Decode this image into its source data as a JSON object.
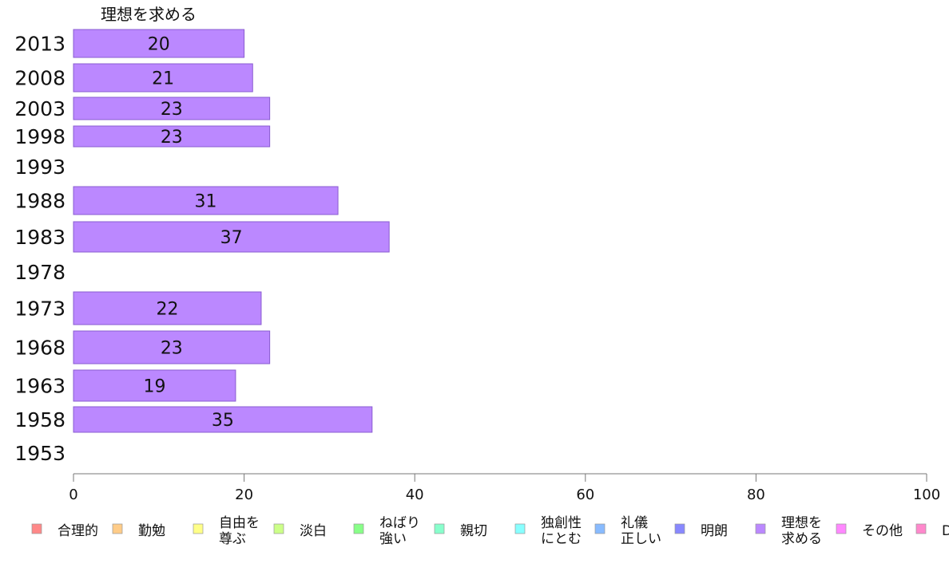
{
  "chart_data": {
    "type": "bar",
    "orientation": "horizontal",
    "title": "理想を求める",
    "categories": [
      "2013",
      "2008",
      "2003",
      "1998",
      "1993",
      "1988",
      "1983",
      "1978",
      "1973",
      "1968",
      "1963",
      "1958",
      "1953"
    ],
    "series": [
      {
        "name": "理想を求める",
        "color": "#bb88ff",
        "values": [
          20,
          21,
          23,
          23,
          null,
          31,
          37,
          null,
          22,
          23,
          19,
          35,
          null
        ]
      }
    ],
    "xlim": [
      0,
      100
    ],
    "xticks": [
      "0",
      "20",
      "40",
      "60",
      "80",
      "100"
    ],
    "grid": false,
    "legend": {
      "placement": "bottom",
      "items": [
        {
          "label": [
            "合理的"
          ],
          "color": "#ff8888"
        },
        {
          "label": [
            "勤勉"
          ],
          "color": "#ffcc88"
        },
        {
          "label": [
            "自由を",
            "尊ぶ"
          ],
          "color": "#ffff88"
        },
        {
          "label": [
            "淡白"
          ],
          "color": "#ccff88"
        },
        {
          "label": [
            "ねばり",
            "強い"
          ],
          "color": "#88ff88"
        },
        {
          "label": [
            "親切"
          ],
          "color": "#88ffcc"
        },
        {
          "label": [
            "独創性",
            "にとむ"
          ],
          "color": "#88ffff"
        },
        {
          "label": [
            "礼儀",
            "正しい"
          ],
          "color": "#88bbff"
        },
        {
          "label": [
            "明朗"
          ],
          "color": "#8888ff"
        },
        {
          "label": [
            "理想を",
            "求める"
          ],
          "color": "#bb88ff"
        },
        {
          "label": [
            "その他"
          ],
          "color": "#ff88ff"
        },
        {
          "label": [
            "D"
          ],
          "color": "#ff88cc"
        }
      ]
    }
  }
}
